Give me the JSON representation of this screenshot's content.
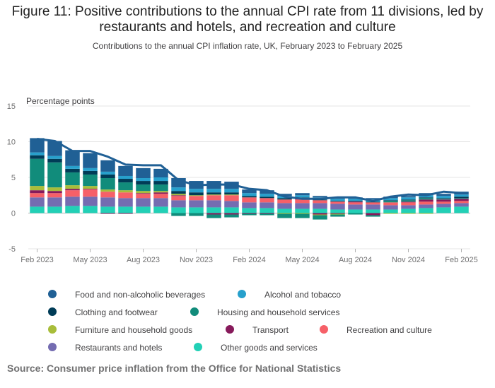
{
  "title": "Figure 11: Positive contributions to the annual CPI rate from 11 divisions, led by restaurants and hotels, and recreation and culture",
  "subtitle": "Contributions to the annual CPI inflation rate, UK, February 2023 to February 2025",
  "source": "Source: Consumer price inflation from the Office for National Statistics",
  "colors": {
    "Food and non-alcoholic beverages": "#206095",
    "Alcohol and tobacco": "#27a0cc",
    "Clothing and footwear": "#003c57",
    "Housing and household services": "#118c7b",
    "Furniture and household goods": "#a8bd3a",
    "Transport": "#871a5b",
    "Recreation and culture": "#f66068",
    "Restaurants and hotels": "#746cb1",
    "Other goods and services": "#22d0b6",
    "CPI": "#206095"
  },
  "chart_data": {
    "type": "bar",
    "stacked": true,
    "ylabel": "Percentage points",
    "ylim": [
      -5,
      15
    ],
    "yticks": [
      -5,
      0,
      5,
      10,
      15
    ],
    "grid": true,
    "legend_position": "bottom",
    "categories": [
      "Feb 2023",
      "Mar 2023",
      "Apr 2023",
      "May 2023",
      "Jun 2023",
      "Jul 2023",
      "Aug 2023",
      "Sep 2023",
      "Oct 2023",
      "Nov 2023",
      "Dec 2023",
      "Jan 2024",
      "Feb 2024",
      "Mar 2024",
      "Apr 2024",
      "May 2024",
      "Jun 2024",
      "Jul 2024",
      "Aug 2024",
      "Sep 2024",
      "Oct 2024",
      "Nov 2024",
      "Dec 2024",
      "Jan 2025",
      "Feb 2025"
    ],
    "tick_labels": [
      "Feb 2023",
      "May 2023",
      "Aug 2023",
      "Nov 2023",
      "Feb 2024",
      "May 2024",
      "Aug 2024",
      "Nov 2024",
      "Feb 2025"
    ],
    "series": [
      {
        "name": "Other goods and services",
        "values": [
          0.9,
          0.9,
          1.0,
          1.0,
          0.9,
          0.9,
          0.9,
          0.9,
          0.8,
          0.8,
          0.8,
          0.8,
          0.7,
          0.7,
          0.6,
          0.6,
          0.6,
          0.5,
          0.5,
          0.5,
          0.5,
          0.6,
          0.7,
          0.8,
          0.9
        ]
      },
      {
        "name": "Restaurants and hotels",
        "values": [
          1.3,
          1.3,
          1.3,
          1.3,
          1.3,
          1.2,
          1.2,
          1.2,
          1.0,
          1.0,
          1.0,
          0.9,
          0.8,
          0.8,
          0.8,
          0.8,
          0.8,
          0.8,
          0.7,
          0.7,
          0.6,
          0.5,
          0.5,
          0.5,
          0.5
        ]
      },
      {
        "name": "Recreation and culture",
        "values": [
          0.6,
          0.6,
          0.9,
          1.0,
          0.8,
          0.8,
          0.6,
          0.6,
          0.6,
          0.6,
          0.7,
          0.8,
          0.7,
          0.6,
          0.5,
          0.5,
          0.4,
          0.3,
          0.3,
          0.3,
          0.4,
          0.4,
          0.4,
          0.3,
          0.3
        ]
      },
      {
        "name": "Transport",
        "values": [
          0.4,
          0.3,
          0.2,
          0.1,
          -0.1,
          -0.1,
          0.1,
          0.2,
          0.1,
          0.0,
          -0.2,
          -0.2,
          -0.1,
          -0.1,
          0.0,
          0.1,
          -0.2,
          -0.1,
          0.1,
          -0.3,
          0.0,
          0.1,
          0.3,
          0.3,
          0.3
        ]
      },
      {
        "name": "Furniture and household goods",
        "values": [
          0.6,
          0.5,
          0.5,
          0.4,
          0.3,
          0.3,
          0.3,
          0.2,
          0.2,
          0.1,
          0.1,
          0.1,
          0.0,
          0.0,
          -0.1,
          -0.1,
          -0.1,
          -0.1,
          0.0,
          0.0,
          -0.1,
          -0.1,
          -0.1,
          0.0,
          0.0
        ]
      },
      {
        "name": "Housing and household services",
        "values": [
          3.8,
          3.5,
          1.8,
          1.6,
          1.6,
          1.1,
          0.9,
          0.9,
          -0.4,
          -0.4,
          -0.5,
          -0.4,
          -0.2,
          -0.2,
          -0.6,
          -0.6,
          -0.6,
          -0.3,
          -0.2,
          -0.2,
          0.2,
          0.2,
          0.2,
          0.1,
          0.1
        ]
      },
      {
        "name": "Clothing and footwear",
        "values": [
          0.5,
          0.5,
          0.5,
          0.5,
          0.5,
          0.5,
          0.5,
          0.5,
          0.4,
          0.4,
          0.3,
          0.3,
          0.2,
          0.2,
          0.2,
          0.2,
          0.1,
          0.1,
          0.1,
          0.1,
          0.1,
          0.1,
          0.1,
          0.1,
          0.2
        ]
      },
      {
        "name": "Alcohol and tobacco",
        "values": [
          0.4,
          0.4,
          0.4,
          0.4,
          0.4,
          0.4,
          0.4,
          0.5,
          0.5,
          0.5,
          0.5,
          0.5,
          0.4,
          0.4,
          0.3,
          0.3,
          0.3,
          0.3,
          0.3,
          0.3,
          0.3,
          0.3,
          0.3,
          0.3,
          0.3
        ]
      },
      {
        "name": "Food and non-alcoholic beverages",
        "values": [
          2.0,
          2.1,
          2.2,
          2.1,
          1.6,
          1.4,
          1.4,
          1.2,
          1.3,
          1.1,
          1.1,
          1.0,
          0.5,
          0.5,
          0.3,
          0.3,
          0.2,
          0.2,
          0.2,
          0.2,
          0.2,
          0.2,
          0.3,
          0.3,
          0.4
        ]
      }
    ],
    "line": {
      "name": "CPI",
      "values": [
        10.4,
        10.1,
        8.7,
        8.7,
        7.9,
        6.8,
        6.7,
        6.7,
        4.6,
        3.9,
        4.0,
        4.0,
        3.4,
        3.2,
        2.3,
        2.0,
        2.0,
        2.2,
        2.2,
        1.7,
        2.3,
        2.6,
        2.5,
        3.0,
        2.8
      ]
    }
  },
  "legend": [
    {
      "label": "Food and non-alcoholic beverages"
    },
    {
      "label": "Alcohol and tobacco"
    },
    {
      "label": "Clothing and footwear"
    },
    {
      "label": "Housing and household services"
    },
    {
      "label": "Furniture and household goods"
    },
    {
      "label": "Transport"
    },
    {
      "label": "Recreation and culture"
    },
    {
      "label": "Restaurants and hotels"
    },
    {
      "label": "Other goods and services"
    }
  ]
}
